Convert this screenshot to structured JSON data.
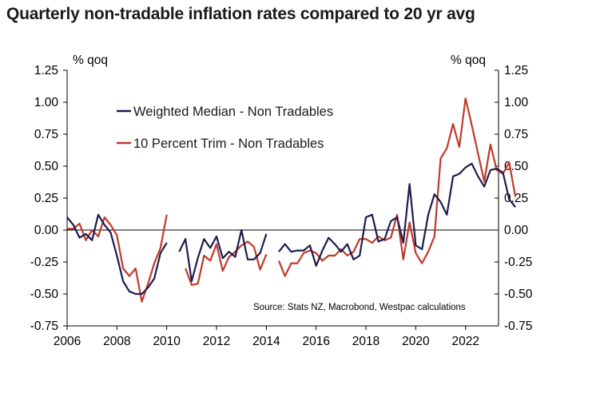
{
  "chart_data": {
    "type": "line",
    "title": "Quarterly non-tradable inflation rates compared to 20 yr avg",
    "y_unit_left": "% qoq",
    "y_unit_right": "% qoq",
    "ylim": [
      -0.75,
      1.25
    ],
    "yticks": [
      "1.25",
      "1.00",
      "0.75",
      "0.50",
      "0.25",
      "0.00",
      "-0.25",
      "-0.50",
      "-0.75"
    ],
    "xlim": [
      2006,
      2023.75
    ],
    "xticks": [
      "2006",
      "2008",
      "2010",
      "2012",
      "2014",
      "2016",
      "2018",
      "2020",
      "2022"
    ],
    "legend_placement": "upper-left inside",
    "grid": false,
    "annotation": "Source: Stats NZ, Macrobond, Westpac calculations",
    "series": [
      {
        "name": "Weighted Median - Non Tradables",
        "color": "#1c1c4e",
        "start": 2006.0,
        "step": 0.25,
        "values": [
          0.1,
          0.04,
          -0.06,
          -0.03,
          -0.08,
          0.12,
          0.04,
          -0.02,
          -0.2,
          -0.4,
          -0.48,
          -0.5,
          -0.5,
          -0.45,
          -0.38,
          -0.18,
          -0.1,
          null,
          -0.17,
          -0.07,
          -0.4,
          -0.22,
          -0.07,
          -0.14,
          -0.05,
          -0.22,
          -0.17,
          -0.21,
          0.0,
          -0.23,
          -0.23,
          -0.18,
          -0.03,
          null,
          -0.17,
          -0.11,
          -0.17,
          -0.16,
          -0.16,
          -0.12,
          -0.28,
          -0.16,
          -0.06,
          -0.11,
          -0.17,
          -0.11,
          -0.23,
          -0.2,
          0.1,
          0.12,
          -0.09,
          -0.07,
          0.07,
          0.1,
          -0.1,
          0.36,
          -0.12,
          -0.15,
          0.12,
          0.28,
          0.22,
          0.12,
          0.42,
          0.44,
          0.49,
          0.52,
          0.42,
          0.34,
          0.47,
          0.48,
          0.45,
          0.24,
          0.18
        ]
      },
      {
        "name": "10 Percent Trim - Non Tradables",
        "color": "#c0392b",
        "start": 2006.0,
        "step": 0.25,
        "values": [
          0.01,
          0.01,
          0.05,
          -0.08,
          0.0,
          -0.05,
          0.1,
          0.04,
          -0.04,
          -0.3,
          -0.36,
          -0.3,
          -0.56,
          -0.42,
          -0.26,
          -0.14,
          0.12,
          null,
          null,
          -0.3,
          -0.43,
          -0.42,
          -0.2,
          -0.24,
          -0.11,
          -0.32,
          -0.21,
          -0.17,
          -0.12,
          -0.09,
          -0.13,
          -0.31,
          -0.19,
          null,
          -0.24,
          -0.36,
          -0.26,
          -0.26,
          -0.18,
          -0.16,
          -0.18,
          -0.24,
          -0.2,
          -0.2,
          -0.15,
          -0.2,
          -0.17,
          -0.07,
          -0.07,
          -0.1,
          -0.05,
          -0.08,
          -0.06,
          0.12,
          -0.23,
          0.06,
          -0.18,
          -0.26,
          -0.17,
          -0.05,
          0.56,
          0.64,
          0.83,
          0.65,
          1.03,
          0.82,
          0.6,
          0.38,
          0.67,
          0.47,
          0.44,
          0.53,
          0.26
        ]
      }
    ]
  }
}
